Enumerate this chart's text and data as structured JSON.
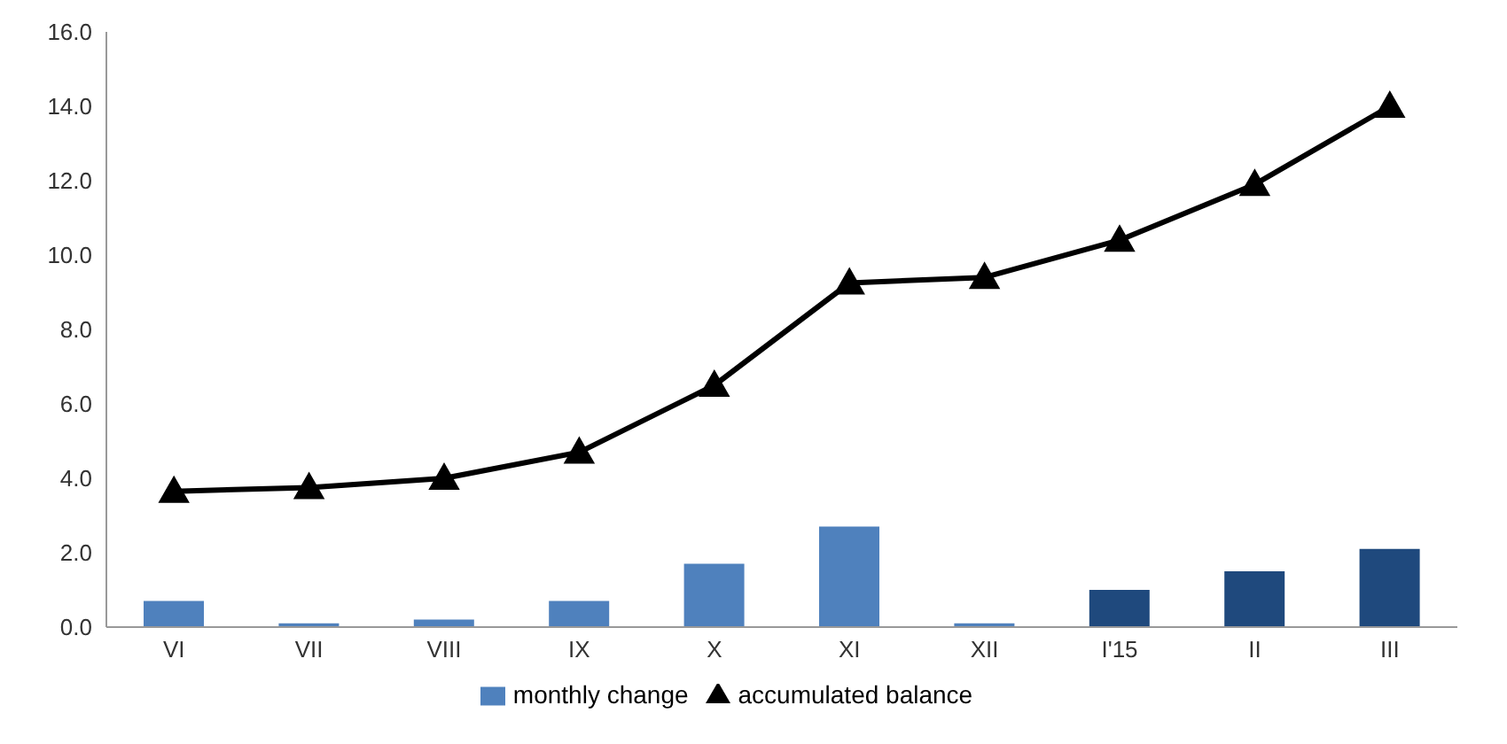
{
  "chart_data": {
    "type": "bar",
    "categories": [
      "VI",
      "VII",
      "VIII",
      "IX",
      "X",
      "XI",
      "XII",
      "I'15",
      "II",
      "III"
    ],
    "series": [
      {
        "name": "monthly change",
        "color": "#4f81bd",
        "colors": [
          "#4f81bd",
          "#4f81bd",
          "#4f81bd",
          "#4f81bd",
          "#4f81bd",
          "#4f81bd",
          "#4f81bd",
          "#1f497d",
          "#1f497d",
          "#1f497d"
        ],
        "values": [
          0.7,
          0.1,
          0.2,
          0.7,
          1.7,
          2.7,
          0.1,
          1.0,
          1.5,
          2.1
        ]
      },
      {
        "name": "accumulated balance",
        "type": "line",
        "color": "#000000",
        "marker": "triangle",
        "values": [
          3.65,
          3.75,
          4.0,
          4.7,
          6.5,
          9.25,
          9.4,
          10.4,
          11.9,
          14.0
        ]
      }
    ],
    "ylim": [
      0,
      16
    ],
    "yticks": [
      {
        "value": 0,
        "label": "0.0"
      },
      {
        "value": 2,
        "label": "2.0"
      },
      {
        "value": 4,
        "label": "4.0"
      },
      {
        "value": 6,
        "label": "6.0"
      },
      {
        "value": 8,
        "label": "8.0"
      },
      {
        "value": 10,
        "label": "10.0"
      },
      {
        "value": 12,
        "label": "12.0"
      },
      {
        "value": 14,
        "label": "14.0"
      },
      {
        "value": 16,
        "label": "16.0"
      }
    ],
    "legend": "bottom"
  }
}
